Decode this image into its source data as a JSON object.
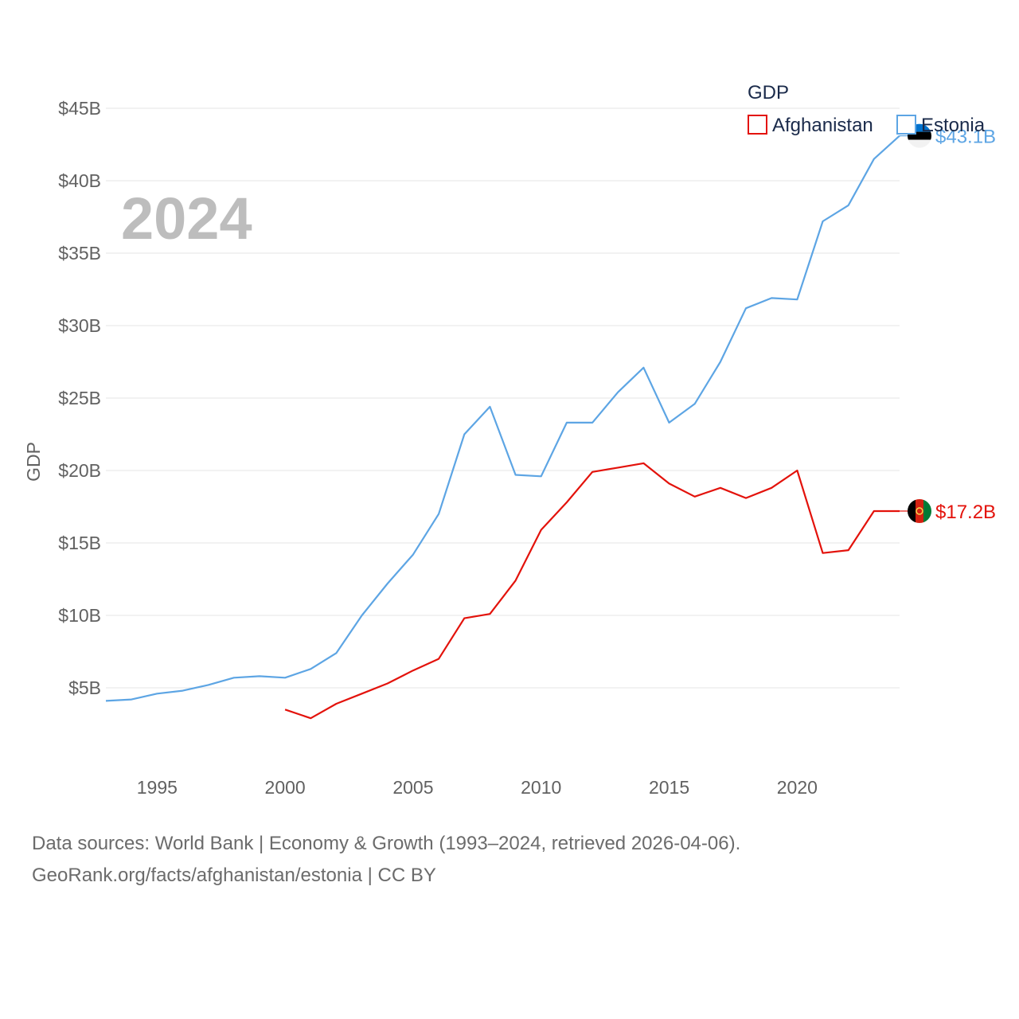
{
  "chart_data": {
    "type": "line",
    "title": "GDP",
    "year_label": "2024",
    "ylabel": "GDP",
    "xlabel": "",
    "xlim": [
      1993,
      2024
    ],
    "ylim": [
      0,
      45
    ],
    "x_ticks": [
      1995,
      2000,
      2005,
      2010,
      2015,
      2020
    ],
    "x_tick_labels": [
      "1995",
      "2000",
      "2005",
      "2010",
      "2015",
      "2020"
    ],
    "y_ticks": [
      5,
      10,
      15,
      20,
      25,
      30,
      35,
      40,
      45
    ],
    "y_tick_labels": [
      "$5B",
      "$10B",
      "$15B",
      "$20B",
      "$25B",
      "$30B",
      "$35B",
      "$40B",
      "$45B"
    ],
    "legend": {
      "title": "GDP",
      "position": "top-right"
    },
    "series": [
      {
        "name": "Afghanistan",
        "color": "#e3120b",
        "end_label": "$17.2B",
        "flag_icon": "afghanistan-flag-icon",
        "x": [
          2000,
          2001,
          2002,
          2003,
          2004,
          2005,
          2006,
          2007,
          2008,
          2009,
          2010,
          2011,
          2012,
          2013,
          2014,
          2015,
          2016,
          2017,
          2018,
          2019,
          2020,
          2021,
          2022,
          2023,
          2024
        ],
        "values": [
          3.5,
          2.9,
          3.9,
          4.6,
          5.3,
          6.2,
          7.0,
          9.8,
          10.1,
          12.4,
          15.9,
          17.8,
          19.9,
          20.2,
          20.5,
          19.1,
          18.2,
          18.8,
          18.1,
          18.8,
          20.0,
          14.3,
          14.5,
          17.2,
          17.2
        ]
      },
      {
        "name": "Estonia",
        "color": "#5da5e4",
        "end_label": "$43.1B",
        "flag_icon": "estonia-flag-icon",
        "x": [
          1993,
          1994,
          1995,
          1996,
          1997,
          1998,
          1999,
          2000,
          2001,
          2002,
          2003,
          2004,
          2005,
          2006,
          2007,
          2008,
          2009,
          2010,
          2011,
          2012,
          2013,
          2014,
          2015,
          2016,
          2017,
          2018,
          2019,
          2020,
          2021,
          2022,
          2023,
          2024
        ],
        "values": [
          4.1,
          4.2,
          4.6,
          4.8,
          5.2,
          5.7,
          5.8,
          5.7,
          6.3,
          7.4,
          10.0,
          12.2,
          14.2,
          17.0,
          22.5,
          24.4,
          19.7,
          19.6,
          23.3,
          23.3,
          25.4,
          27.1,
          23.3,
          24.6,
          27.5,
          31.2,
          31.9,
          31.8,
          37.2,
          38.3,
          41.5,
          43.1
        ]
      }
    ]
  },
  "footer": {
    "line1": "Data sources: World Bank | Economy & Growth (1993–2024, retrieved 2026-04-06).",
    "line2": "GeoRank.org/facts/afghanistan/estonia | CC BY"
  }
}
